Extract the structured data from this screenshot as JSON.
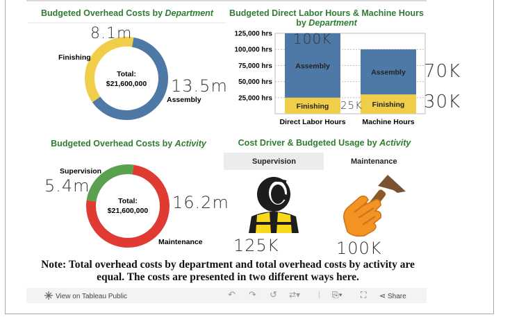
{
  "titles": {
    "dept_pre": "Budgeted Overhead Costs by ",
    "dept_em": "Department",
    "labor_pre": "Budgeted Direct Labor Hours & Machine Hours",
    "labor_line2_pre": "by ",
    "labor_em": "Department",
    "act_pre": "Budgeted Overhead Costs by ",
    "act_em": "Activity",
    "driver_pre": "Cost Driver & Budgeted Usage by ",
    "driver_em": "Activity"
  },
  "donut_dept": {
    "center_label": "Total:",
    "center_value": "$21,600,000",
    "labels": [
      "Finishing",
      "Assembly"
    ]
  },
  "donut_activity": {
    "center_label": "Total:",
    "center_value": "$21,600,000",
    "labels": [
      "Supervision",
      "Maintenance"
    ]
  },
  "handwritten": {
    "finishing": "8.1m",
    "assembly": "13.5m",
    "supervision": "5.4m",
    "maintenance": "16.2m",
    "labor_assembly": "100K",
    "labor_finishing": "25K",
    "machine_assembly": "70K",
    "machine_finishing": "30K",
    "sup_usage": "125K",
    "maint_usage": "100K"
  },
  "activities": {
    "supervision": "Supervision",
    "maintenance": "Maintenance"
  },
  "note": "Note: Total overhead costs by department and total overhead costs by activity are equal. The costs are presented in two different ways here.",
  "footer": {
    "view_label": "View on Tableau Public",
    "share_label": "Share"
  },
  "colors": {
    "assembly": "#4e79a7",
    "finishing": "#f1ce4a",
    "supervision": "#59a14f",
    "maintenance": "#e03b33",
    "title": "#2e7d32"
  },
  "chart_data": [
    {
      "type": "pie",
      "title": "Budgeted Overhead Costs by Department",
      "categories": [
        "Finishing",
        "Assembly"
      ],
      "values": [
        8100000,
        13500000
      ],
      "total_label": "Total: $21,600,000"
    },
    {
      "type": "bar",
      "stacked": true,
      "title": "Budgeted Direct Labor Hours & Machine Hours by Department",
      "categories": [
        "Direct Labor Hours",
        "Machine Hours"
      ],
      "series": [
        {
          "name": "Finishing",
          "values": [
            25000,
            30000
          ]
        },
        {
          "name": "Assembly",
          "values": [
            100000,
            70000
          ]
        }
      ],
      "yticks": [
        "25,000 hrs",
        "50,000 hrs",
        "75,000 hrs",
        "100,000 hrs",
        "125,000 hrs"
      ],
      "ylim": [
        0,
        125000
      ]
    },
    {
      "type": "pie",
      "title": "Budgeted Overhead Costs by Activity",
      "categories": [
        "Supervision",
        "Maintenance"
      ],
      "values": [
        5400000,
        16200000
      ],
      "total_label": "Total: $21,600,000"
    }
  ]
}
